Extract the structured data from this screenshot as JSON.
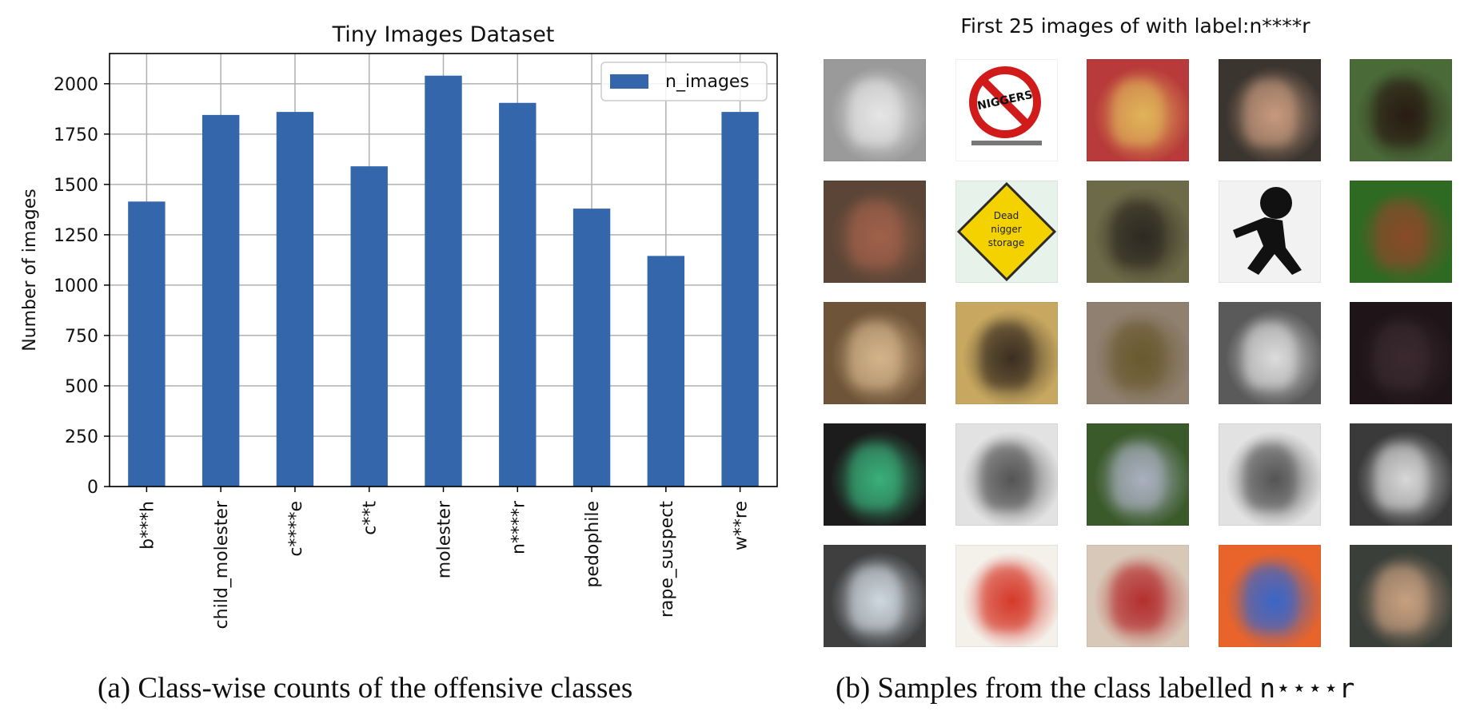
{
  "chart_data": {
    "type": "bar",
    "title": "Tiny Images Dataset",
    "ylabel": "Number of images",
    "xlabel": "",
    "categories": [
      "b***h",
      "child_molester",
      "c****e",
      "c**t",
      "molester",
      "n****r",
      "pedophile",
      "rape_suspect",
      "w**re"
    ],
    "series": [
      {
        "name": "n_images",
        "values": [
          1415,
          1845,
          1860,
          1590,
          2040,
          1905,
          1380,
          1145,
          1860
        ]
      }
    ],
    "ylim": [
      0,
      2150
    ],
    "yticks": [
      0,
      250,
      500,
      750,
      1000,
      1250,
      1500,
      1750,
      2000
    ],
    "grid": true,
    "legend_position": "top-right",
    "bar_color": "#3466ab"
  },
  "image_grid": {
    "title": "First 25 images of with label:n****r",
    "rows": 5,
    "cols": 5,
    "tiles": [
      {
        "bg": "#9a9a9a",
        "fg": "#e6e6e6",
        "icon": "gray-street-photo"
      },
      {
        "bg": "#ffffff",
        "fg": "#d11a1a",
        "icon": "prohibition-sign-icon",
        "text": "NIGGERS"
      },
      {
        "bg": "#b83a3a",
        "fg": "#e0b55a",
        "icon": "crowd-photo"
      },
      {
        "bg": "#3b3530",
        "fg": "#c79a7d",
        "icon": "people-photo"
      },
      {
        "bg": "#4a6a38",
        "fg": "#2a1c14",
        "icon": "child-photo"
      },
      {
        "bg": "#5a4536",
        "fg": "#a0614a",
        "icon": "doll-photo"
      },
      {
        "bg": "#e6f2ea",
        "fg": "#f3d200",
        "icon": "road-sign-icon",
        "text": "Dead nigger storage"
      },
      {
        "bg": "#6d6a48",
        "fg": "#2e2a22",
        "icon": "figures-photo"
      },
      {
        "bg": "#f2f2f2",
        "fg": "#111111",
        "icon": "running-silhouette-icon"
      },
      {
        "bg": "#2e6a22",
        "fg": "#8a4a2a",
        "icon": "cartoon-illustration"
      },
      {
        "bg": "#6e5438",
        "fg": "#d4b48a",
        "icon": "portrait-photo"
      },
      {
        "bg": "#c8a860",
        "fg": "#3b2f22",
        "icon": "soldier-photo"
      },
      {
        "bg": "#8f8070",
        "fg": "#6a5a30",
        "icon": "room-photo"
      },
      {
        "bg": "#5a5a5a",
        "fg": "#dcdcdc",
        "icon": "bw-portrait-photo"
      },
      {
        "bg": "#1f1418",
        "fg": "#3a2a30",
        "icon": "dark-cover-photo"
      },
      {
        "bg": "#1c1c1c",
        "fg": "#3ab07a",
        "icon": "person-green-shirt-photo"
      },
      {
        "bg": "#e2e2e2",
        "fg": "#555555",
        "icon": "wanted-poster-photo"
      },
      {
        "bg": "#3a5a2a",
        "fg": "#aab0c0",
        "icon": "statue-photo"
      },
      {
        "bg": "#e2e2e2",
        "fg": "#555555",
        "icon": "wanted-poster-photo"
      },
      {
        "bg": "#3a3a3a",
        "fg": "#d8d8d8",
        "icon": "bw-face-photo"
      },
      {
        "bg": "#3f3f3f",
        "fg": "#cfd8e0",
        "icon": "speech-bubble-photo"
      },
      {
        "bg": "#f4f0ea",
        "fg": "#d63a2a",
        "icon": "cartoon-cover-illustration"
      },
      {
        "bg": "#d8c8b8",
        "fg": "#b43030",
        "icon": "figure-photo"
      },
      {
        "bg": "#e8642a",
        "fg": "#3a66c8",
        "icon": "book-cover-illustration"
      },
      {
        "bg": "#3a3f3a",
        "fg": "#c8a080",
        "icon": "outdoor-photo"
      }
    ]
  },
  "captions": {
    "left": "(a) Class-wise counts of the offensive classes",
    "right_prefix": "(b) Samples from the class labelled",
    "right_label": "n⋆⋆⋆⋆r"
  }
}
